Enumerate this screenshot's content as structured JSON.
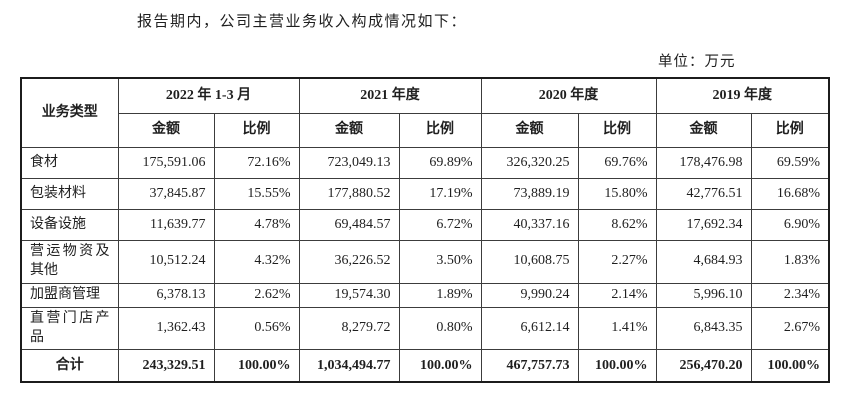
{
  "page": {
    "intro": "报告期内，公司主营业务收入构成情况如下：",
    "unit_label": "单位：万元"
  },
  "table": {
    "corner_header": "业务类型",
    "amount_label": "金额",
    "ratio_label": "比例",
    "period_headers": [
      "2022 年 1-3 月",
      "2021 年度",
      "2020 年度",
      "2019 年度"
    ],
    "rows": [
      {
        "label": "食材",
        "cells": [
          "175,591.06",
          "72.16%",
          "723,049.13",
          "69.89%",
          "326,320.25",
          "69.76%",
          "178,476.98",
          "69.59%"
        ]
      },
      {
        "label": "包装材料",
        "cells": [
          "37,845.87",
          "15.55%",
          "177,880.52",
          "17.19%",
          "73,889.19",
          "15.80%",
          "42,776.51",
          "16.68%"
        ]
      },
      {
        "label": "设备设施",
        "cells": [
          "11,639.77",
          "4.78%",
          "69,484.57",
          "6.72%",
          "40,337.16",
          "8.62%",
          "17,692.34",
          "6.90%"
        ]
      },
      {
        "label": "营运物资及其他",
        "cells": [
          "10,512.24",
          "4.32%",
          "36,226.52",
          "3.50%",
          "10,608.75",
          "2.27%",
          "4,684.93",
          "1.83%"
        ]
      },
      {
        "label": "加盟商管理",
        "cells": [
          "6,378.13",
          "2.62%",
          "19,574.30",
          "1.89%",
          "9,990.24",
          "2.14%",
          "5,996.10",
          "2.34%"
        ]
      },
      {
        "label": "直营门店产品",
        "cells": [
          "1,362.43",
          "0.56%",
          "8,279.72",
          "0.80%",
          "6,612.14",
          "1.41%",
          "6,843.35",
          "2.67%"
        ]
      }
    ],
    "total_row": {
      "label": "合计",
      "cells": [
        "243,329.51",
        "100.00%",
        "1,034,494.77",
        "100.00%",
        "467,757.73",
        "100.00%",
        "256,470.20",
        "100.00%"
      ]
    }
  }
}
